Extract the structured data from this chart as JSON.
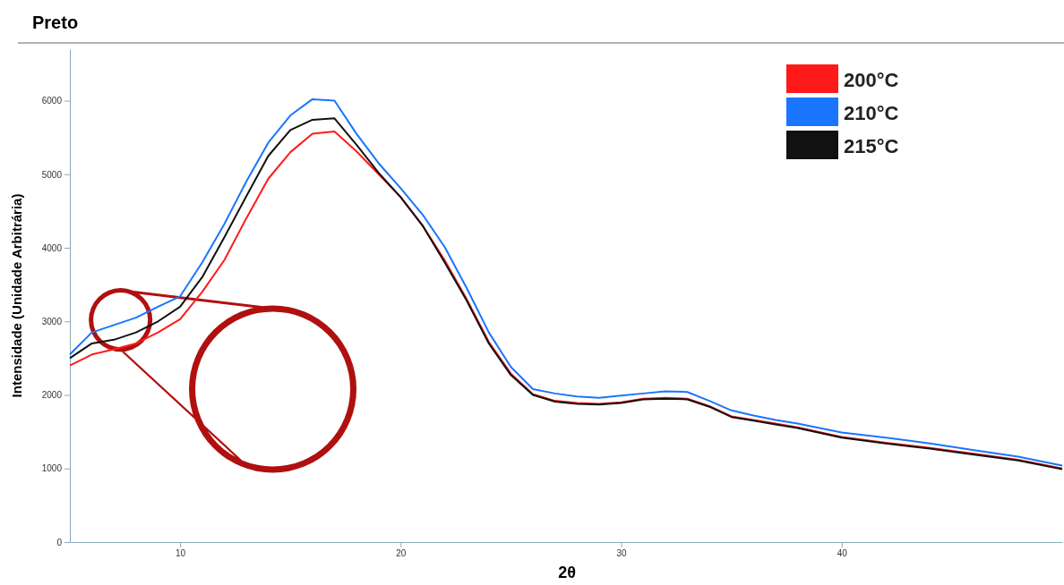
{
  "chart_data": {
    "type": "line",
    "title": "Preto",
    "xlabel": "2θ",
    "ylabel": "Intensidade (Unidade Arbitrária)",
    "x": [
      5,
      6,
      7,
      8,
      9,
      10,
      11,
      12,
      13,
      14,
      15,
      16,
      17,
      18,
      19,
      20,
      21,
      22,
      23,
      24,
      25,
      26,
      27,
      28,
      29,
      30,
      31,
      32,
      33,
      34,
      35,
      36,
      37,
      38,
      40,
      42,
      44,
      46,
      48,
      50
    ],
    "series": [
      {
        "name": "200°C",
        "color": "#ff1a1a",
        "values": [
          2400,
          2550,
          2620,
          2700,
          2850,
          3030,
          3400,
          3830,
          4400,
          4940,
          5300,
          5550,
          5580,
          5310,
          5000,
          4690,
          4300,
          3830,
          3300,
          2720,
          2290,
          2010,
          1920,
          1890,
          1880,
          1900,
          1950,
          1960,
          1950,
          1850,
          1710,
          1660,
          1610,
          1560,
          1430,
          1350,
          1280,
          1200,
          1120,
          1000
        ]
      },
      {
        "name": "210°C",
        "color": "#1a75ff",
        "values": [
          2550,
          2850,
          2950,
          3050,
          3200,
          3340,
          3800,
          4320,
          4900,
          5430,
          5800,
          6020,
          6000,
          5550,
          5150,
          4810,
          4450,
          4010,
          3450,
          2850,
          2380,
          2080,
          2020,
          1980,
          1960,
          1990,
          2020,
          2050,
          2040,
          1920,
          1790,
          1720,
          1660,
          1610,
          1490,
          1420,
          1340,
          1250,
          1160,
          1040
        ]
      },
      {
        "name": "215°C",
        "color": "#111111",
        "values": [
          2500,
          2700,
          2750,
          2850,
          3000,
          3200,
          3600,
          4140,
          4700,
          5250,
          5600,
          5740,
          5760,
          5400,
          5020,
          4690,
          4300,
          3800,
          3280,
          2700,
          2270,
          2000,
          1910,
          1880,
          1870,
          1890,
          1940,
          1950,
          1940,
          1840,
          1700,
          1650,
          1600,
          1550,
          1420,
          1340,
          1270,
          1190,
          1110,
          990
        ]
      }
    ],
    "xlim": [
      5,
      50
    ],
    "ylim": [
      0,
      6700
    ],
    "xticks": [
      10,
      20,
      30,
      40
    ],
    "yticks": [
      0,
      1000,
      2000,
      3000,
      4000,
      5000,
      6000
    ],
    "grid": false,
    "legend": "top right",
    "marker": "none",
    "line_style": "solid"
  }
}
